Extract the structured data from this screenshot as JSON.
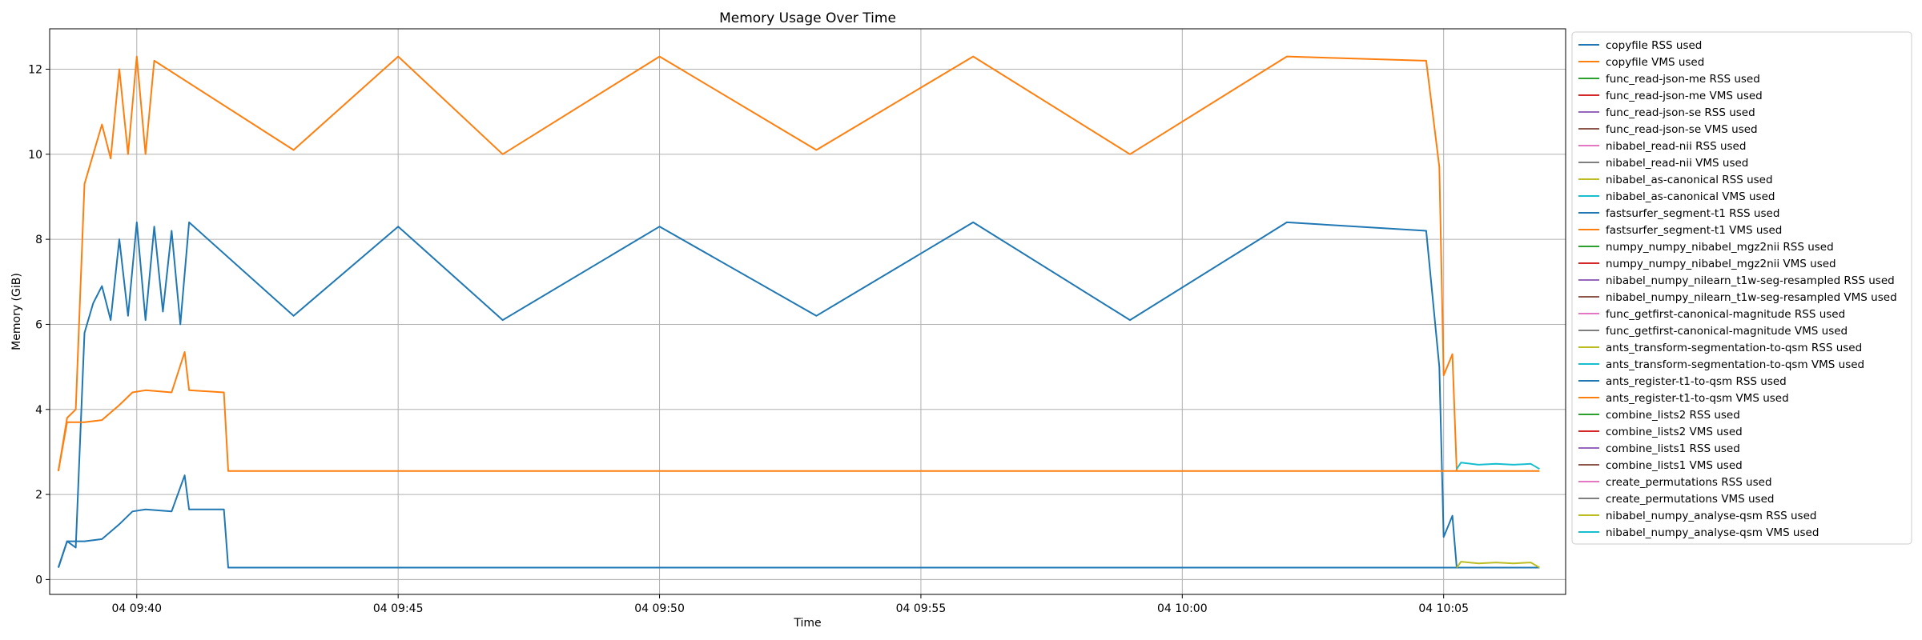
{
  "chart_data": {
    "type": "line",
    "title": "Memory Usage Over Time",
    "xlabel": "Time",
    "ylabel": "Memory (GiB)",
    "xlim": [
      "04 09:38:20",
      "04 10:07:20"
    ],
    "ylim": [
      -0.35,
      12.95
    ],
    "x_ticks": [
      {
        "time": "04 09:40:00",
        "label": "04 09:40"
      },
      {
        "time": "04 09:45:00",
        "label": "04 09:45"
      },
      {
        "time": "04 09:50:00",
        "label": "04 09:50"
      },
      {
        "time": "04 09:55:00",
        "label": "04 09:55"
      },
      {
        "time": "04 10:00:00",
        "label": "04 10:00"
      },
      {
        "time": "04 10:05:00",
        "label": "04 10:05"
      }
    ],
    "y_ticks": [
      0,
      2,
      4,
      6,
      8,
      10,
      12
    ],
    "grid": true,
    "legend_position": "outside-right",
    "series": [
      {
        "name": "copyfile RSS used",
        "color": "#1f77b4",
        "points": []
      },
      {
        "name": "copyfile VMS used",
        "color": "#ff7f0e",
        "points": []
      },
      {
        "name": "func_read-json-me RSS used",
        "color": "#2ca02c",
        "points": []
      },
      {
        "name": "func_read-json-me VMS used",
        "color": "#d62728",
        "points": []
      },
      {
        "name": "func_read-json-se RSS used",
        "color": "#9467bd",
        "points": []
      },
      {
        "name": "func_read-json-se VMS used",
        "color": "#8c564b",
        "points": []
      },
      {
        "name": "nibabel_read-nii RSS used",
        "color": "#e377c2",
        "points": []
      },
      {
        "name": "nibabel_read-nii VMS used",
        "color": "#7f7f7f",
        "points": []
      },
      {
        "name": "nibabel_as-canonical RSS used",
        "color": "#bcbd22",
        "points": []
      },
      {
        "name": "nibabel_as-canonical VMS used",
        "color": "#17becf",
        "points": []
      },
      {
        "name": "fastsurfer_segment-t1 RSS used",
        "color": "#1f77b4",
        "points": [
          [
            "04 09:38:30",
            0.28
          ],
          [
            "04 09:38:40",
            0.9
          ],
          [
            "04 09:38:50",
            0.75
          ],
          [
            "04 09:39:00",
            5.8
          ],
          [
            "04 09:39:10",
            6.5
          ],
          [
            "04 09:39:20",
            6.9
          ],
          [
            "04 09:39:30",
            6.1
          ],
          [
            "04 09:39:40",
            8.0
          ],
          [
            "04 09:39:50",
            6.2
          ],
          [
            "04 09:40:00",
            8.4
          ],
          [
            "04 09:40:10",
            6.1
          ],
          [
            "04 09:40:20",
            8.3
          ],
          [
            "04 09:40:30",
            6.3
          ],
          [
            "04 09:40:40",
            8.2
          ],
          [
            "04 09:40:50",
            6.0
          ],
          [
            "04 09:41:00",
            8.4
          ],
          [
            "04 09:43:00",
            6.2
          ],
          [
            "04 09:45:00",
            8.3
          ],
          [
            "04 09:47:00",
            6.1
          ],
          [
            "04 09:50:00",
            8.3
          ],
          [
            "04 09:53:00",
            6.2
          ],
          [
            "04 09:56:00",
            8.4
          ],
          [
            "04 09:59:00",
            6.1
          ],
          [
            "04 10:02:00",
            8.4
          ],
          [
            "04 10:04:40",
            8.2
          ],
          [
            "04 10:04:55",
            5.0
          ],
          [
            "04 10:05:00",
            1.0
          ],
          [
            "04 10:05:10",
            1.5
          ],
          [
            "04 10:05:15",
            0.28
          ]
        ]
      },
      {
        "name": "fastsurfer_segment-t1 VMS used",
        "color": "#ff7f0e",
        "points": [
          [
            "04 09:38:30",
            2.55
          ],
          [
            "04 09:38:40",
            3.8
          ],
          [
            "04 09:38:50",
            4.0
          ],
          [
            "04 09:39:00",
            9.3
          ],
          [
            "04 09:39:10",
            10.0
          ],
          [
            "04 09:39:20",
            10.7
          ],
          [
            "04 09:39:30",
            9.9
          ],
          [
            "04 09:39:40",
            12.0
          ],
          [
            "04 09:39:50",
            10.0
          ],
          [
            "04 09:40:00",
            12.3
          ],
          [
            "04 09:40:10",
            10.0
          ],
          [
            "04 09:40:20",
            12.2
          ],
          [
            "04 09:43:00",
            10.1
          ],
          [
            "04 09:45:00",
            12.3
          ],
          [
            "04 09:47:00",
            10.0
          ],
          [
            "04 09:50:00",
            12.3
          ],
          [
            "04 09:53:00",
            10.1
          ],
          [
            "04 09:56:00",
            12.3
          ],
          [
            "04 09:59:00",
            10.0
          ],
          [
            "04 10:02:00",
            12.3
          ],
          [
            "04 10:04:40",
            12.2
          ],
          [
            "04 10:04:55",
            9.7
          ],
          [
            "04 10:05:00",
            4.8
          ],
          [
            "04 10:05:10",
            5.3
          ],
          [
            "04 10:05:15",
            2.55
          ]
        ]
      },
      {
        "name": "numpy_numpy_nibabel_mgz2nii RSS used",
        "color": "#2ca02c",
        "points": []
      },
      {
        "name": "numpy_numpy_nibabel_mgz2nii VMS used",
        "color": "#d62728",
        "points": []
      },
      {
        "name": "nibabel_numpy_nilearn_t1w-seg-resampled RSS used",
        "color": "#9467bd",
        "points": []
      },
      {
        "name": "nibabel_numpy_nilearn_t1w-seg-resampled VMS used",
        "color": "#8c564b",
        "points": []
      },
      {
        "name": "func_getfirst-canonical-magnitude RSS used",
        "color": "#e377c2",
        "points": []
      },
      {
        "name": "func_getfirst-canonical-magnitude VMS used",
        "color": "#7f7f7f",
        "points": []
      },
      {
        "name": "ants_transform-segmentation-to-qsm RSS used",
        "color": "#bcbd22",
        "points": []
      },
      {
        "name": "ants_transform-segmentation-to-qsm VMS used",
        "color": "#17becf",
        "points": []
      },
      {
        "name": "ants_register-t1-to-qsm RSS used",
        "color": "#1f77b4",
        "points": [
          [
            "04 09:38:30",
            0.28
          ],
          [
            "04 09:38:40",
            0.9
          ],
          [
            "04 09:39:00",
            0.9
          ],
          [
            "04 09:39:20",
            0.95
          ],
          [
            "04 09:39:40",
            1.3
          ],
          [
            "04 09:39:55",
            1.6
          ],
          [
            "04 09:40:10",
            1.65
          ],
          [
            "04 09:40:40",
            1.6
          ],
          [
            "04 09:40:55",
            2.45
          ],
          [
            "04 09:41:00",
            1.65
          ],
          [
            "04 09:41:40",
            1.65
          ],
          [
            "04 09:41:45",
            0.28
          ],
          [
            "04 10:06:50",
            0.28
          ]
        ]
      },
      {
        "name": "ants_register-t1-to-qsm VMS used",
        "color": "#ff7f0e",
        "points": [
          [
            "04 09:38:30",
            2.55
          ],
          [
            "04 09:38:40",
            3.7
          ],
          [
            "04 09:39:00",
            3.7
          ],
          [
            "04 09:39:20",
            3.75
          ],
          [
            "04 09:39:40",
            4.1
          ],
          [
            "04 09:39:55",
            4.4
          ],
          [
            "04 09:40:10",
            4.45
          ],
          [
            "04 09:40:40",
            4.4
          ],
          [
            "04 09:40:55",
            5.35
          ],
          [
            "04 09:41:00",
            4.45
          ],
          [
            "04 09:41:40",
            4.4
          ],
          [
            "04 09:41:45",
            2.55
          ],
          [
            "04 10:06:50",
            2.55
          ]
        ]
      },
      {
        "name": "combine_lists2 RSS used",
        "color": "#2ca02c",
        "points": []
      },
      {
        "name": "combine_lists2 VMS used",
        "color": "#d62728",
        "points": []
      },
      {
        "name": "combine_lists1 RSS used",
        "color": "#9467bd",
        "points": []
      },
      {
        "name": "combine_lists1 VMS used",
        "color": "#8c564b",
        "points": []
      },
      {
        "name": "create_permutations RSS used",
        "color": "#e377c2",
        "points": []
      },
      {
        "name": "create_permutations VMS used",
        "color": "#7f7f7f",
        "points": []
      },
      {
        "name": "nibabel_numpy_analyse-qsm RSS used",
        "color": "#bcbd22",
        "points": [
          [
            "04 10:05:15",
            0.28
          ],
          [
            "04 10:05:20",
            0.42
          ],
          [
            "04 10:05:40",
            0.38
          ],
          [
            "04 10:06:00",
            0.4
          ],
          [
            "04 10:06:20",
            0.38
          ],
          [
            "04 10:06:40",
            0.4
          ],
          [
            "04 10:06:50",
            0.28
          ]
        ]
      },
      {
        "name": "nibabel_numpy_analyse-qsm VMS used",
        "color": "#17becf",
        "points": [
          [
            "04 10:05:15",
            2.6
          ],
          [
            "04 10:05:20",
            2.75
          ],
          [
            "04 10:05:40",
            2.7
          ],
          [
            "04 10:06:00",
            2.72
          ],
          [
            "04 10:06:20",
            2.7
          ],
          [
            "04 10:06:40",
            2.72
          ],
          [
            "04 10:06:50",
            2.6
          ]
        ]
      }
    ]
  }
}
